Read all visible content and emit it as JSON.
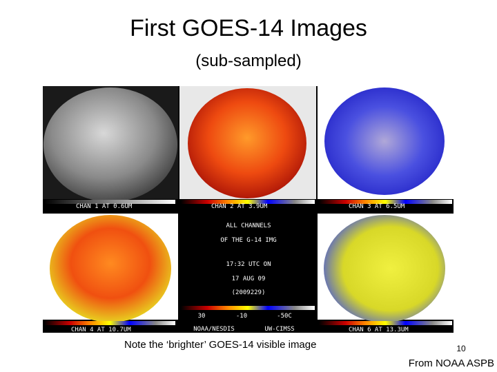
{
  "title": "First GOES-14 Images",
  "subtitle": "(sub-sampled)",
  "panels": [
    {
      "label": "CHAN 1 AT 0.6UM"
    },
    {
      "label": "CHAN 2 AT 3.9UM"
    },
    {
      "label": "CHAN 3 AT 6.5UM"
    },
    {
      "label": "CHAN 4 AT 10.7UM"
    },
    {
      "label": "CHAN 6 AT 13.3UM"
    }
  ],
  "center_text": [
    "ALL CHANNELS",
    "OF THE G-14 IMG",
    "17:32 UTC ON",
    "17 AUG 09",
    "(2009229)"
  ],
  "scale_labels": [
    "30",
    "-10",
    "-50C"
  ],
  "credits": [
    "NOAA/NESDIS",
    "UW-CIMSS"
  ],
  "caption": "Note the ‘brighter’ GOES-14 visible image",
  "page_number": "10",
  "source": "From NOAA ASPB"
}
